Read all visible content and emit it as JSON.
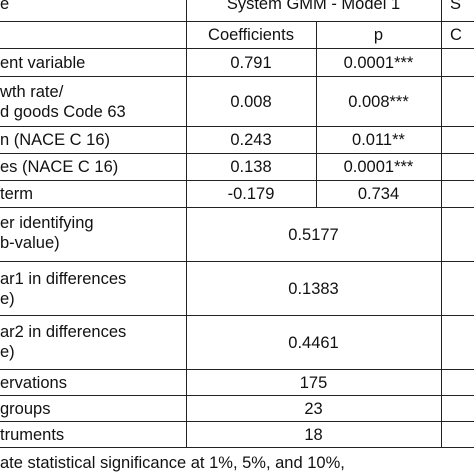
{
  "table": {
    "header_left": "e",
    "header_model": "System GMM - Model 1",
    "header_next": "S",
    "subheader_coef": "Coefficients",
    "subheader_p": "p",
    "subheader_next": "C",
    "rows": [
      {
        "label": "ent variable",
        "coef": "0.791",
        "p": "0.0001***"
      },
      {
        "label_line1": "wth rate/",
        "label_line2": "d goods Code 63",
        "coef": "0.008",
        "p": "0.008***"
      },
      {
        "label": "n (NACE C 16)",
        "coef": "0.243",
        "p": "0.011**"
      },
      {
        "label": "es (NACE C 16)",
        "coef": "0.138",
        "p": "0.0001***"
      },
      {
        "label": "term",
        "coef": "-0.179",
        "p": "0.734"
      },
      {
        "label_line1": "er identifying",
        "label_line2": "b-value)",
        "merged": "0.5177"
      },
      {
        "label_line1": "ar1 in differences",
        "label_line2": "e)",
        "merged": "0.1383"
      },
      {
        "label_line1": "ar2 in differences",
        "label_line2": "e)",
        "merged": "0.4461"
      },
      {
        "label": "ervations",
        "merged": "175"
      },
      {
        "label": "groups",
        "merged": "23"
      },
      {
        "label": "truments",
        "merged": "18"
      }
    ],
    "footnote": "ate statistical significance at 1%, 5%, and 10%,"
  }
}
